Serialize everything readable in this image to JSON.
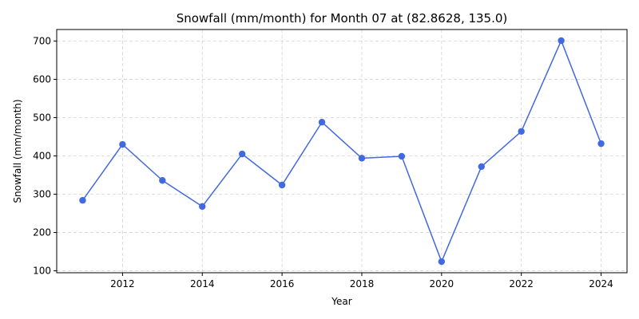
{
  "chart_data": {
    "type": "line",
    "title": "Snowfall (mm/month) for Month 07 at (82.8628, 135.0)",
    "xlabel": "Year",
    "ylabel": "Snowfall (mm/month)",
    "x": [
      2011,
      2012,
      2013,
      2014,
      2015,
      2016,
      2017,
      2018,
      2019,
      2020,
      2021,
      2022,
      2023,
      2024
    ],
    "series": [
      {
        "values": [
          284,
          430,
          336,
          268,
          405,
          324,
          488,
          394,
          399,
          124,
          372,
          464,
          701,
          432
        ],
        "color": "#4169e1",
        "marker": "circle"
      }
    ],
    "xlim": [
      2010.35,
      2024.65
    ],
    "ylim": [
      95,
      730
    ],
    "xticks": [
      2012,
      2014,
      2016,
      2018,
      2020,
      2022,
      2024
    ],
    "yticks": [
      100,
      200,
      300,
      400,
      500,
      600,
      700
    ],
    "grid": true
  }
}
